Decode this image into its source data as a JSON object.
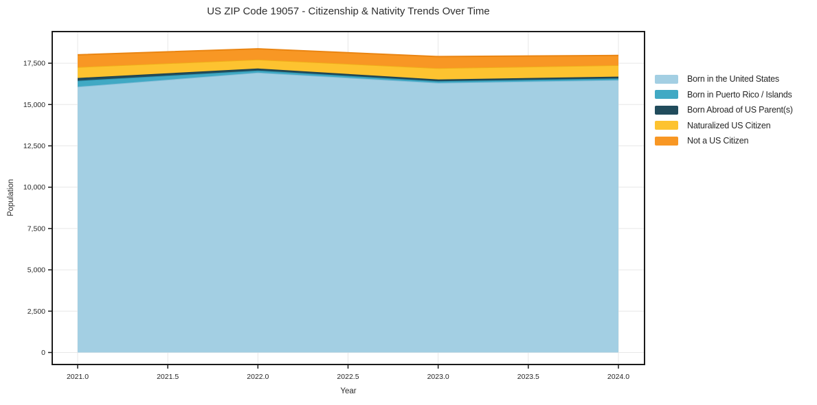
{
  "title": "US ZIP Code 19057 - Citizenship & Nativity Trends Over Time",
  "chart_data": {
    "type": "area",
    "stacked": true,
    "title": "US ZIP Code 19057 - Citizenship & Nativity Trends Over Time",
    "xlabel": "Year",
    "ylabel": "Population",
    "x": [
      2021,
      2022,
      2023,
      2024
    ],
    "series": [
      {
        "name": "Born in the United States",
        "values": [
          16080,
          16930,
          16310,
          16480
        ],
        "color": "#a3cfe3",
        "edge": "#86bed8"
      },
      {
        "name": "Born in Puerto Rico / Islands",
        "values": [
          360,
          130,
          100,
          100
        ],
        "color": "#41a9c4",
        "edge": "#2f96b2"
      },
      {
        "name": "Born Abroad of US Parent(s)",
        "values": [
          165,
          120,
          110,
          110
        ],
        "color": "#214c5c",
        "edge": "#1a3f4e"
      },
      {
        "name": "Naturalized US Citizen",
        "values": [
          660,
          540,
          680,
          690
        ],
        "color": "#fdc330",
        "edge": "#f0ad1a"
      },
      {
        "name": "Not a US Citizen",
        "values": [
          740,
          650,
          700,
          590
        ],
        "color": "#f89724",
        "edge": "#ea8512"
      }
    ],
    "stacked_totals": [
      18005,
      18370,
      17900,
      17970
    ],
    "xticks": {
      "values": [
        2021.0,
        2021.5,
        2022.0,
        2022.5,
        2023.0,
        2023.5,
        2024.0
      ],
      "labels": [
        "2021.0",
        "2021.5",
        "2022.0",
        "2022.5",
        "2023.0",
        "2023.5",
        "2024.0"
      ]
    },
    "yticks": {
      "values": [
        0,
        2500,
        5000,
        7500,
        10000,
        12500,
        15000,
        17500
      ],
      "labels": [
        "0",
        "2,500",
        "5,000",
        "7,500",
        "10,000",
        "12,500",
        "15,000",
        "17,500"
      ]
    },
    "xlim": [
      2020.86,
      2024.15
    ],
    "ylim": [
      0,
      19400
    ],
    "grid": true,
    "legend_position": "right-outside"
  },
  "style": {
    "background": "#ffffff",
    "grid_color": "#e7e7e7",
    "spine_color": "#1a1a1a",
    "tick_text_color": "#262626"
  }
}
